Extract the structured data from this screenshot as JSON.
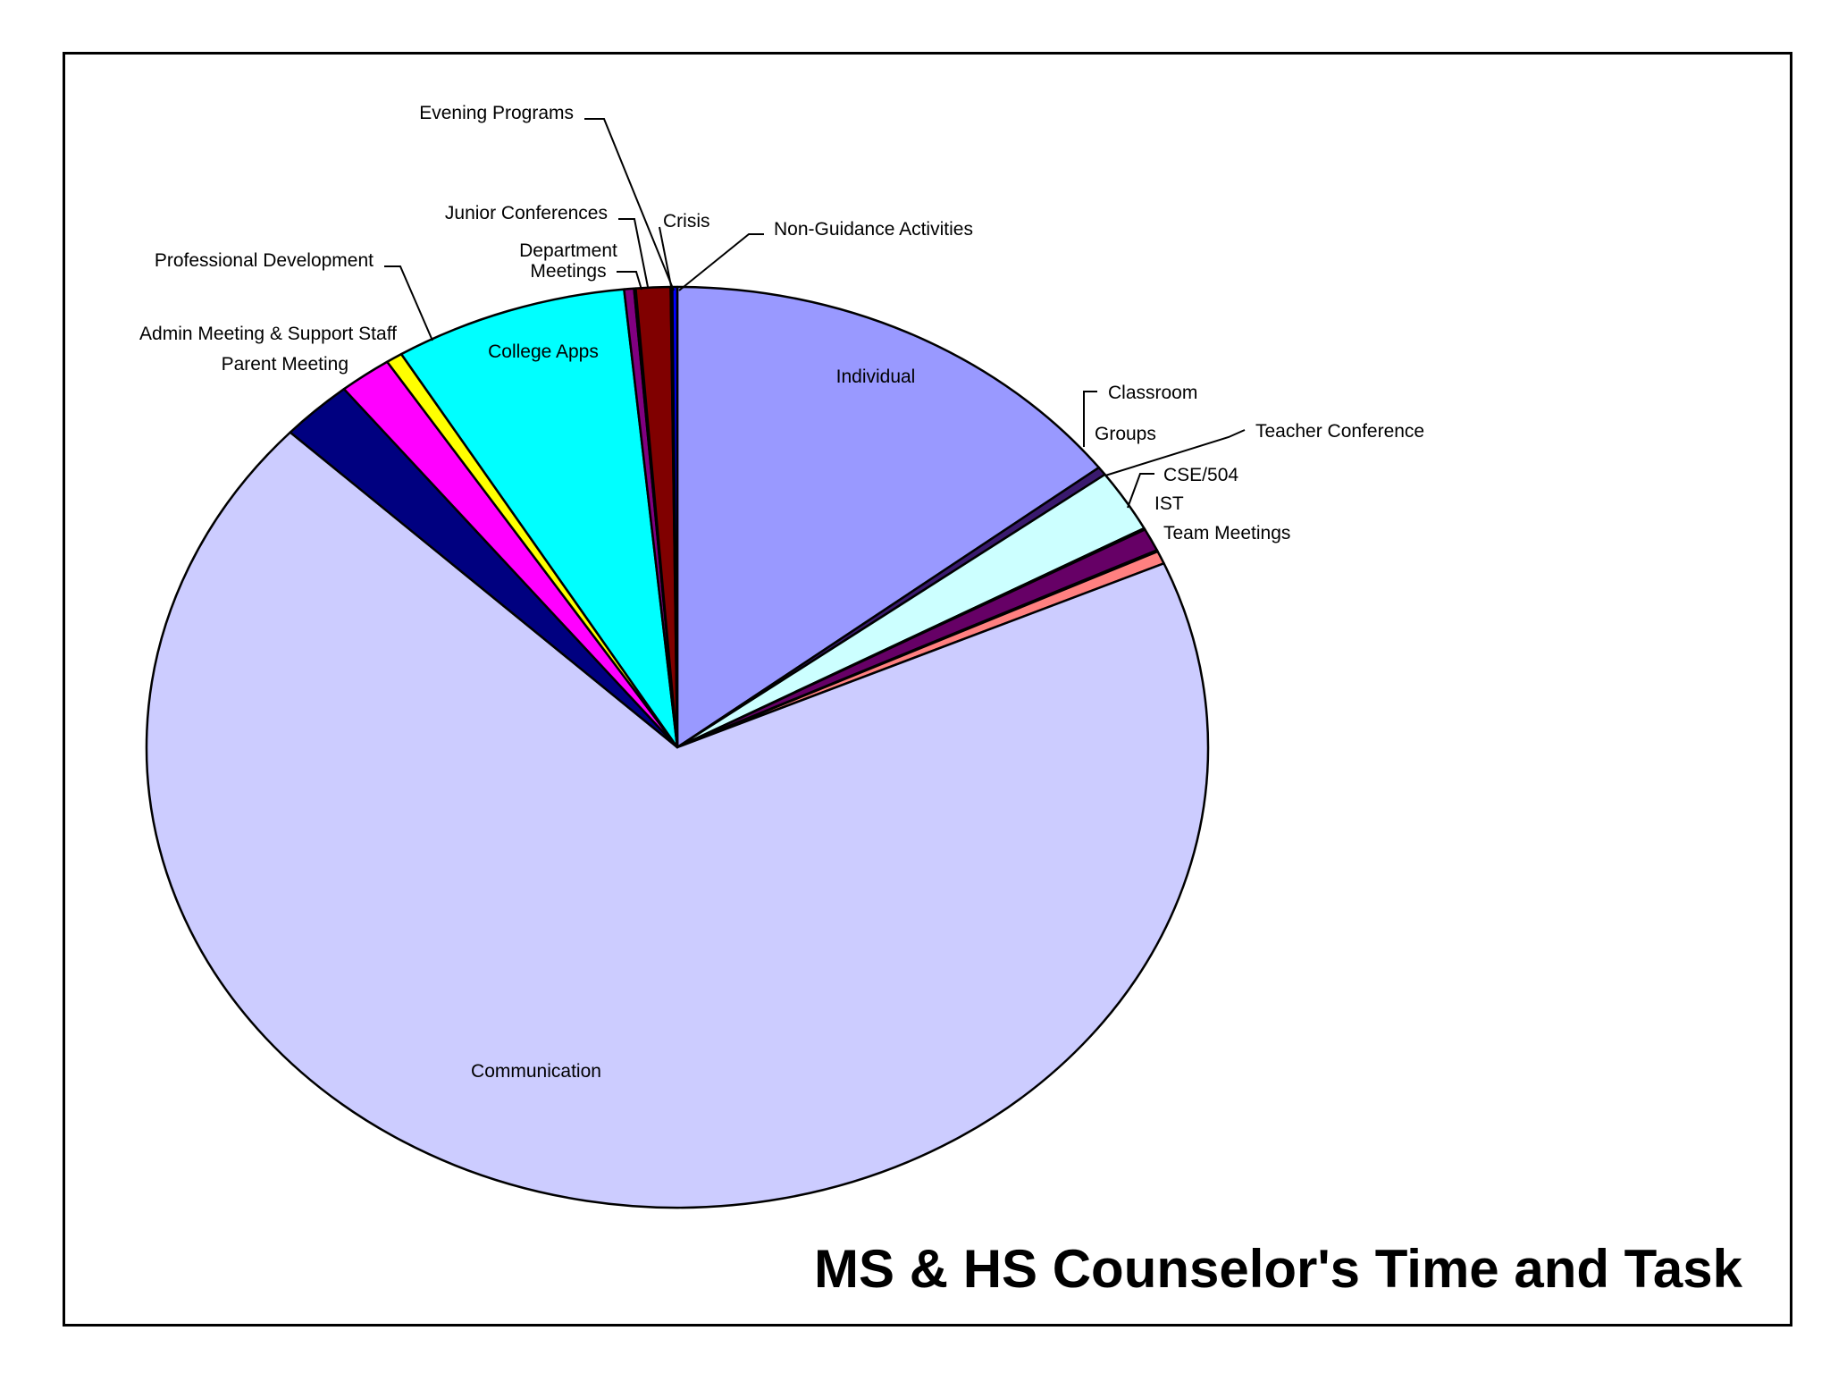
{
  "chart_data": {
    "type": "pie",
    "title": "MS & HS Counselor's Time and Task",
    "slices": [
      {
        "label": "Individual",
        "value": 14.6,
        "color": "#9999ff"
      },
      {
        "label": "Classroom",
        "value": 0.3,
        "color": "#3a1a6e"
      },
      {
        "label": "Groups",
        "value": 2.2,
        "color": "#ccffff"
      },
      {
        "label": "Teacher Conference",
        "value": 0.05,
        "color": "#003366"
      },
      {
        "label": "CSE/504",
        "value": 0.8,
        "color": "#660066"
      },
      {
        "label": "IST",
        "value": 0.05,
        "color": "#0066cc"
      },
      {
        "label": "Team Meetings",
        "value": 0.45,
        "color": "#ff8080"
      },
      {
        "label": "Communication",
        "value": 68.5,
        "color": "#ccccff"
      },
      {
        "label": "Parent Meeting",
        "value": 2.2,
        "color": "#000080"
      },
      {
        "label": "Admin Meeting & Support Staff",
        "value": 1.6,
        "color": "#ff00ff"
      },
      {
        "label": "Professional Development",
        "value": 0.5,
        "color": "#ffff00"
      },
      {
        "label": "College Apps",
        "value": 7.1,
        "color": "#00ffff"
      },
      {
        "label": "Department Meetings",
        "value": 0.3,
        "color": "#800080"
      },
      {
        "label": "Junior Conferences",
        "value": 0.05,
        "color": "#993366"
      },
      {
        "label": "Crisis",
        "value": 1.05,
        "color": "#800000"
      },
      {
        "label": "Evening Programs",
        "value": 0.05,
        "color": "#008080"
      },
      {
        "label": "Non-Guidance Activities",
        "value": 0.15,
        "color": "#0000ff"
      }
    ]
  }
}
